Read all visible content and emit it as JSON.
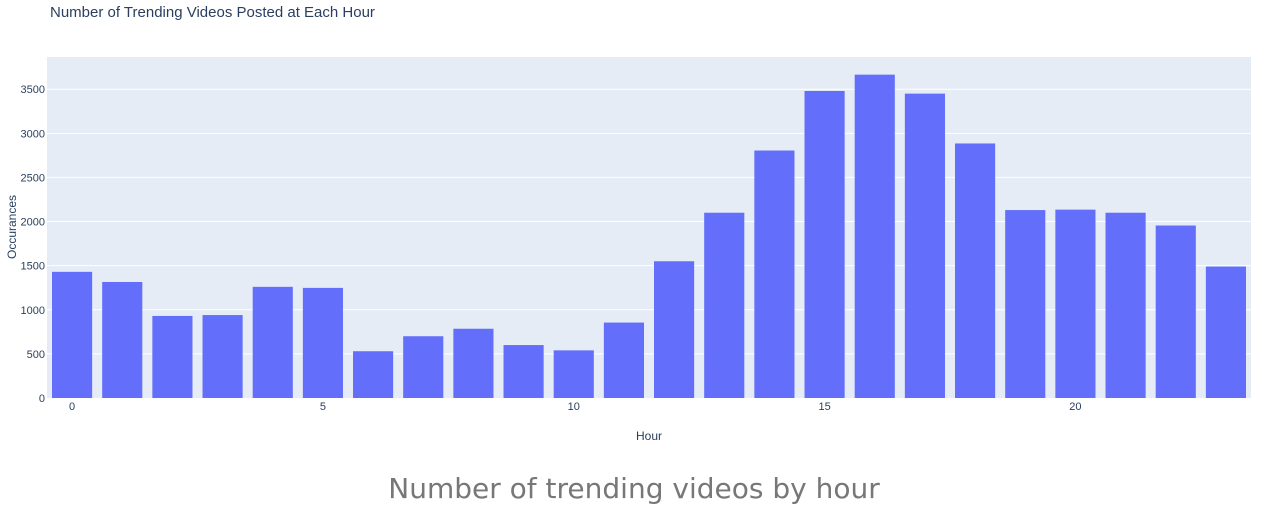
{
  "chart_data": {
    "type": "bar",
    "title": "Number of Trending Videos Posted at Each Hour",
    "xlabel": "Hour",
    "ylabel": "Occurances",
    "x": [
      0,
      1,
      2,
      3,
      4,
      5,
      6,
      7,
      8,
      9,
      10,
      11,
      12,
      13,
      14,
      15,
      16,
      17,
      18,
      19,
      20,
      21,
      22,
      23
    ],
    "values": [
      1430,
      1315,
      930,
      940,
      1260,
      1248,
      530,
      700,
      785,
      600,
      540,
      855,
      1550,
      2100,
      2805,
      3480,
      3665,
      3450,
      2885,
      2130,
      2135,
      2100,
      1955,
      1490
    ],
    "ylim": [
      0,
      3865
    ],
    "xlim": [
      -0.5,
      23.5
    ],
    "xticks": [
      0,
      5,
      10,
      15,
      20
    ],
    "yticks": [
      0,
      500,
      1000,
      1500,
      2000,
      2500,
      3000,
      3500
    ],
    "grid": true,
    "colors": {
      "bar": "#636efa",
      "plot_bg": "#e5ecf6",
      "grid": "#ffffff",
      "text": "#2a3f5f"
    }
  },
  "caption": "Number of trending videos by hour"
}
